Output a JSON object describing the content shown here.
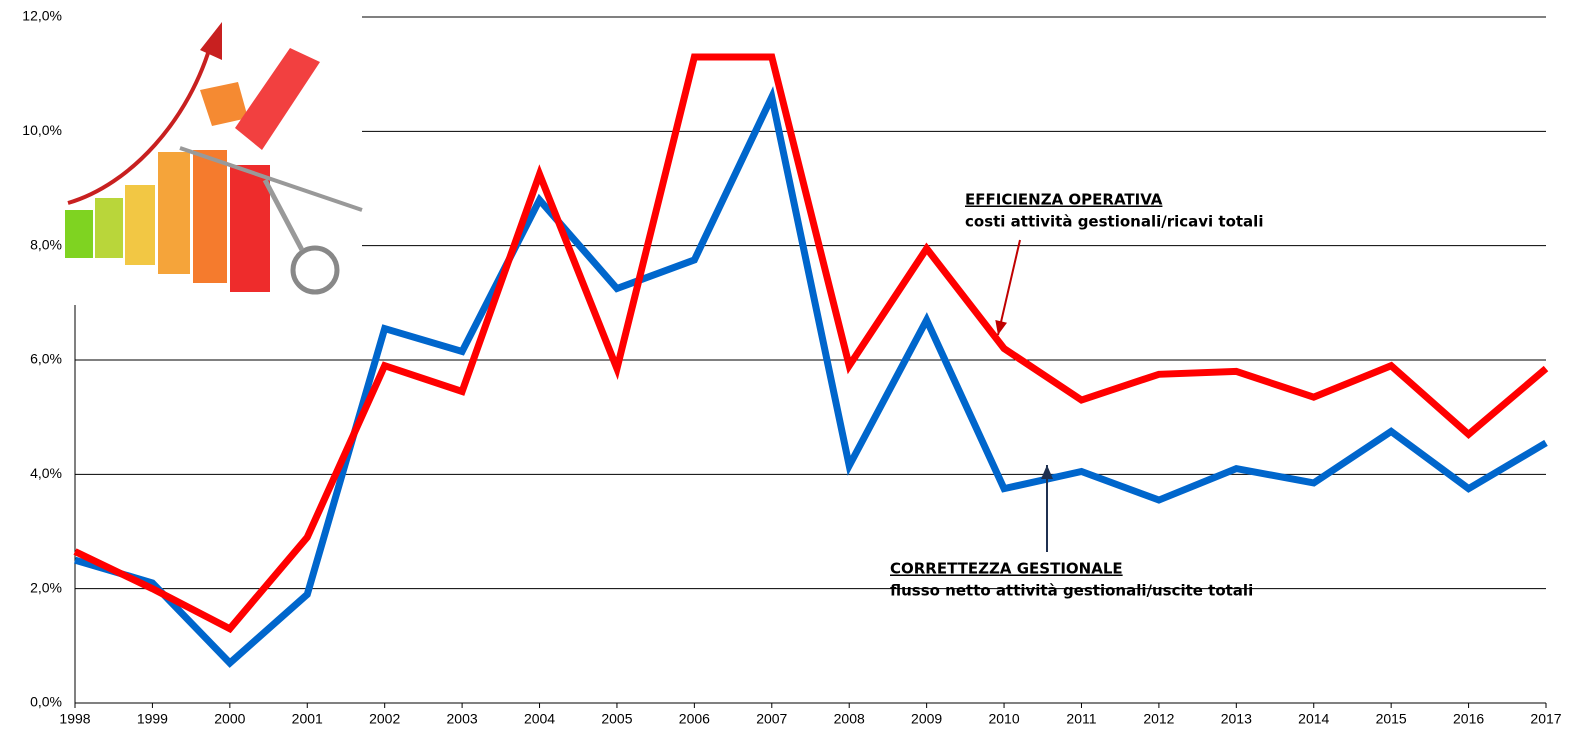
{
  "chart_data": {
    "type": "line",
    "categories": [
      "1998",
      "1999",
      "2000",
      "2001",
      "2002",
      "2003",
      "2004",
      "2005",
      "2006",
      "2007",
      "2008",
      "2009",
      "2010",
      "2011",
      "2012",
      "2013",
      "2014",
      "2015",
      "2016",
      "2017"
    ],
    "series": [
      {
        "color": "#ff0000",
        "values": [
          2.65,
          2.0,
          1.3,
          2.9,
          5.9,
          5.45,
          9.25,
          5.85,
          11.3,
          11.3,
          5.9,
          7.95,
          6.2,
          5.3,
          5.75,
          5.8,
          5.35,
          5.9,
          4.7,
          5.85
        ]
      },
      {
        "color": "#0066cc",
        "values": [
          2.5,
          2.1,
          0.7,
          1.9,
          6.55,
          6.15,
          8.8,
          7.25,
          7.75,
          10.6,
          4.15,
          6.7,
          3.75,
          4.05,
          3.55,
          4.1,
          3.85,
          4.75,
          3.75,
          4.55
        ]
      }
    ],
    "annotations": [
      {
        "title": "EFFICIENZA OPERATIVA",
        "text": "costi attività gestionali/ricavi totali"
      },
      {
        "title": "CORRETTEZZA GESTIONALE",
        "text": "flusso netto attività gestionali/uscite totali"
      }
    ],
    "ylim": [
      0,
      12
    ],
    "yticks": [
      {
        "value": 0,
        "label": "0,0%"
      },
      {
        "value": 2,
        "label": "2,0%"
      },
      {
        "value": 4,
        "label": "4,0%"
      },
      {
        "value": 6,
        "label": "6,0%"
      },
      {
        "value": 8,
        "label": "8,0%"
      },
      {
        "value": 10,
        "label": "10,0%"
      },
      {
        "value": 12,
        "label": "12,0%"
      }
    ],
    "grid": true
  }
}
